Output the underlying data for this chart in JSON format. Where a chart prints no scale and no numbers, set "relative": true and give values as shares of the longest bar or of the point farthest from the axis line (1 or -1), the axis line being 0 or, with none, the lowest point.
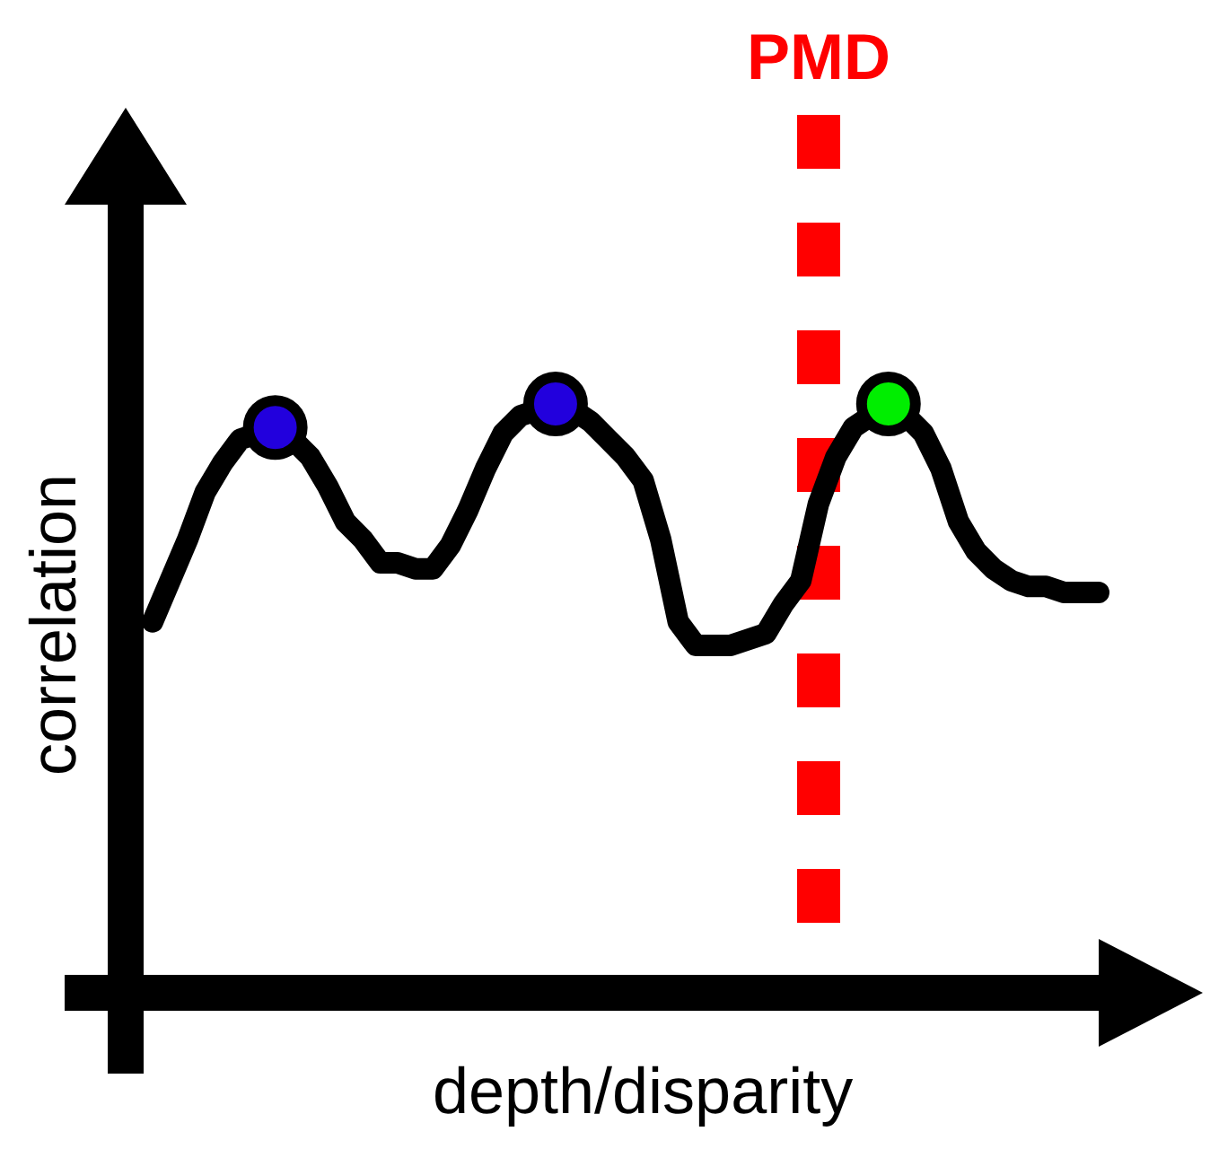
{
  "chart_data": {
    "type": "line",
    "relative": true,
    "xlabel": "depth/disparity",
    "ylabel": "correlation",
    "tick_labels": false,
    "legend": false,
    "line_style": "solid",
    "categories": [
      null,
      null,
      null,
      null,
      null,
      null,
      null,
      null,
      null,
      null,
      null,
      null,
      null,
      null,
      null,
      null,
      null,
      null,
      null,
      null,
      null,
      null,
      null,
      null,
      null,
      null,
      null,
      null,
      null,
      null,
      null,
      null,
      null,
      null,
      null,
      null,
      null,
      null,
      null,
      null,
      null,
      null,
      null,
      null,
      null,
      null,
      null,
      null,
      null,
      null,
      null,
      null,
      null,
      null,
      null
    ],
    "series": [
      {
        "color": "#000000",
        "values": [
          0.63,
          0.7,
          0.77,
          0.85,
          0.9,
          0.94,
          0.95,
          0.96,
          0.94,
          0.91,
          0.86,
          0.8,
          0.77,
          0.73,
          0.73,
          0.72,
          0.72,
          0.76,
          0.82,
          0.89,
          0.95,
          0.98,
          0.99,
          1.0,
          0.99,
          0.97,
          0.94,
          0.91,
          0.87,
          0.77,
          0.63,
          0.59,
          0.59,
          0.59,
          0.6,
          0.61,
          0.66,
          0.7,
          0.83,
          0.91,
          0.96,
          0.98,
          1.0,
          0.98,
          0.95,
          0.89,
          0.8,
          0.75,
          0.72,
          0.7,
          0.69,
          0.69,
          0.68,
          0.68,
          0.68
        ],
        "colors": [
          null,
          null,
          null,
          null,
          null,
          null,
          null,
          "#2200dd",
          null,
          null,
          null,
          null,
          null,
          null,
          null,
          null,
          null,
          null,
          null,
          null,
          null,
          null,
          null,
          "#2200dd",
          null,
          null,
          null,
          null,
          null,
          null,
          null,
          null,
          null,
          null,
          null,
          null,
          null,
          null,
          null,
          null,
          null,
          null,
          "#00ee00",
          null,
          null,
          null,
          null,
          null,
          null,
          null,
          null,
          null,
          null,
          null,
          null
        ]
      }
    ],
    "annotations": [
      "PMD"
    ]
  }
}
